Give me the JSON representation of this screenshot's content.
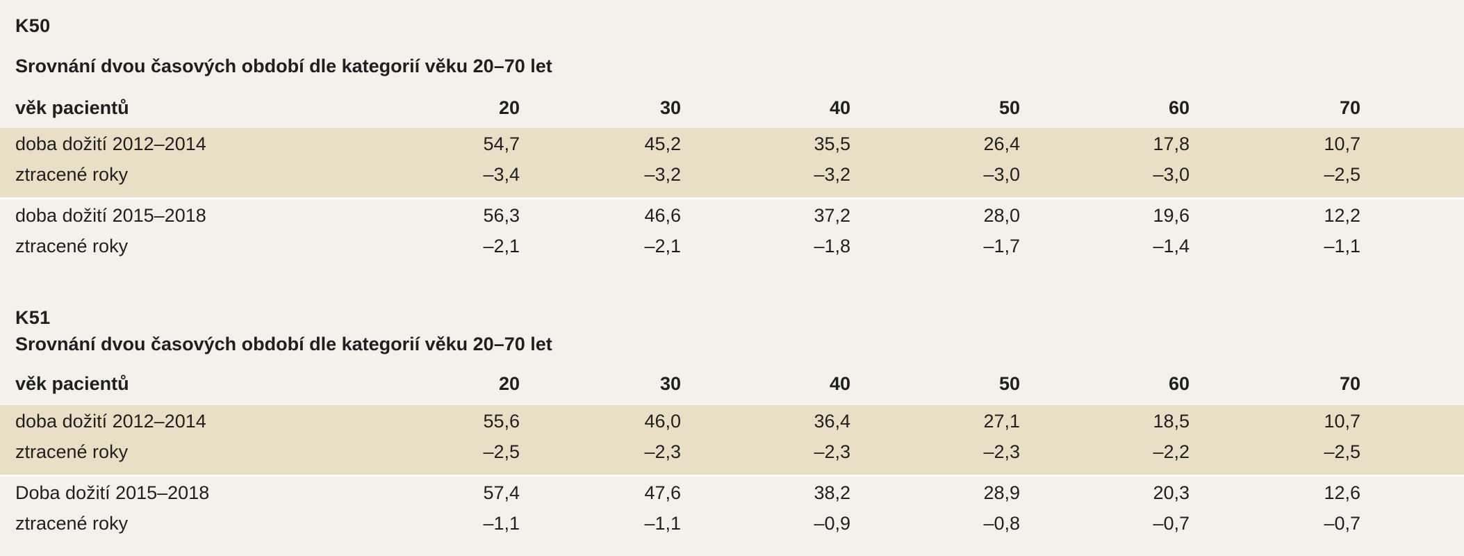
{
  "sections": [
    {
      "code": "K50",
      "title": "Srovnání dvou časových období dle kategorií věku 20–70 let",
      "header_label": "věk pacientů",
      "ages": [
        "20",
        "30",
        "40",
        "50",
        "60",
        "70"
      ],
      "groups": [
        {
          "label_life": "doba dožití 2012–2014",
          "life": [
            "54,7",
            "45,2",
            "35,5",
            "26,4",
            "17,8",
            "10,7"
          ],
          "label_lost": "ztracené roky",
          "lost": [
            "–3,4",
            "–3,2",
            "–3,2",
            "–3,0",
            "–3,0",
            "–2,5"
          ]
        },
        {
          "label_life": "doba dožití 2015–2018",
          "life": [
            "56,3",
            "46,6",
            "37,2",
            "28,0",
            "19,6",
            "12,2"
          ],
          "label_lost": "ztracené roky",
          "lost": [
            "–2,1",
            "–2,1",
            "–1,8",
            "–1,7",
            "–1,4",
            "–1,1"
          ]
        }
      ]
    },
    {
      "code": "K51",
      "title": "Srovnání dvou časových období dle kategorií věku 20–70 let",
      "header_label": "věk pacientů",
      "ages": [
        "20",
        "30",
        "40",
        "50",
        "60",
        "70"
      ],
      "groups": [
        {
          "label_life": "doba dožití 2012–2014",
          "life": [
            "55,6",
            "46,0",
            "36,4",
            "27,1",
            "18,5",
            "10,7"
          ],
          "label_lost": "ztracené roky",
          "lost": [
            "–2,5",
            "–2,3",
            "–2,3",
            "–2,3",
            "–2,2",
            "–2,5"
          ]
        },
        {
          "label_life": "Doba dožití 2015–2018",
          "life": [
            "57,4",
            "47,6",
            "38,2",
            "28,9",
            "20,3",
            "12,6"
          ],
          "label_lost": "ztracené roky",
          "lost": [
            "–1,1",
            "–1,1",
            "–0,9",
            "–0,8",
            "–0,7",
            "–0,7"
          ]
        }
      ]
    }
  ]
}
